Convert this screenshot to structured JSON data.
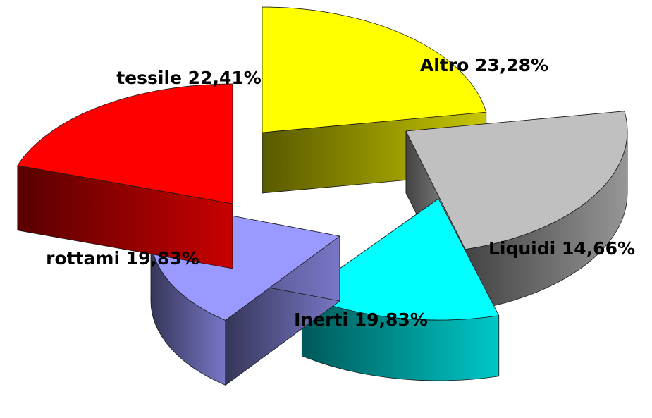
{
  "chart_data": {
    "type": "pie",
    "style": "3d-exploded",
    "slices": [
      {
        "name": "tessile",
        "value": 22.41,
        "label": "tessile 22,41%",
        "color": "#ffff00"
      },
      {
        "name": "Altro",
        "value": 23.28,
        "label": "Altro 23,28%",
        "color": "#c0c0c0"
      },
      {
        "name": "Liquidi",
        "value": 14.66,
        "label": "Liquidi 14,66%",
        "color": "#00ffff"
      },
      {
        "name": "Inerti",
        "value": 19.83,
        "label": "Inerti 19,83%",
        "color": "#9999ff"
      },
      {
        "name": "rottami",
        "value": 19.83,
        "label": "rottami 19,83%",
        "color": "#ff0000"
      }
    ],
    "legend": "none"
  }
}
